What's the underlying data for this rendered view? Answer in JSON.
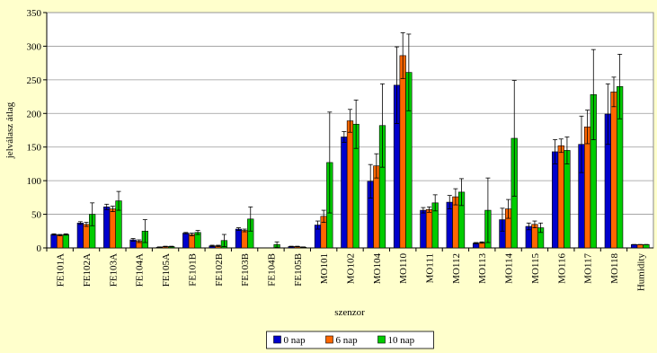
{
  "chart_data": {
    "type": "bar",
    "x_label": "szenzor",
    "y_label": "jelválasz átlag",
    "categories": [
      "FE101A",
      "FE102A",
      "FE103A",
      "FE104A",
      "FE105A",
      "FE101B",
      "FE102B",
      "FE103B",
      "FE104B",
      "FE105B",
      "MO101",
      "MO102",
      "MO104",
      "MO110",
      "MO111",
      "MO112",
      "MO113",
      "MO114",
      "MO115",
      "MO116",
      "MO117",
      "MO118",
      "Humidity"
    ],
    "series": [
      {
        "name": "0 nap",
        "color": "#0000cc",
        "values": [
          20,
          37,
          61,
          12,
          1,
          22,
          3,
          28,
          0,
          2,
          34,
          165,
          99,
          242,
          56,
          68,
          7,
          42,
          32,
          143,
          154,
          199,
          5
        ],
        "errors": [
          1,
          2,
          4,
          2,
          0.5,
          1,
          1,
          2,
          0,
          0.5,
          6,
          8,
          25,
          57,
          4,
          10,
          1,
          17,
          5,
          18,
          42,
          45,
          0
        ]
      },
      {
        "name": "6 nap",
        "color": "#ff6600",
        "values": [
          19,
          35,
          58,
          10,
          2,
          20,
          3,
          26,
          0,
          2,
          47,
          189,
          122,
          286,
          57,
          76,
          8,
          58,
          35,
          152,
          180,
          232,
          5
        ],
        "errors": [
          1,
          3,
          4,
          2,
          0.5,
          2,
          1,
          2,
          0,
          0.5,
          9,
          17,
          18,
          34,
          4,
          12,
          1,
          14,
          5,
          10,
          25,
          22,
          0
        ]
      },
      {
        "name": "10 nap",
        "color": "#00cc00",
        "values": [
          20,
          50,
          70,
          25,
          2,
          23,
          11,
          43,
          5,
          1,
          127,
          184,
          182,
          261,
          67,
          83,
          56,
          163,
          30,
          145,
          228,
          240,
          5
        ],
        "errors": [
          1,
          17,
          14,
          17,
          0.5,
          3,
          9,
          18,
          4,
          0.5,
          75,
          36,
          62,
          57,
          12,
          20,
          48,
          86,
          7,
          20,
          67,
          48,
          0
        ]
      }
    ],
    "ylim": [
      0,
      350
    ],
    "yticks": [
      0,
      50,
      100,
      150,
      200,
      250,
      300,
      350
    ],
    "grid": true,
    "legend": "bottom"
  }
}
